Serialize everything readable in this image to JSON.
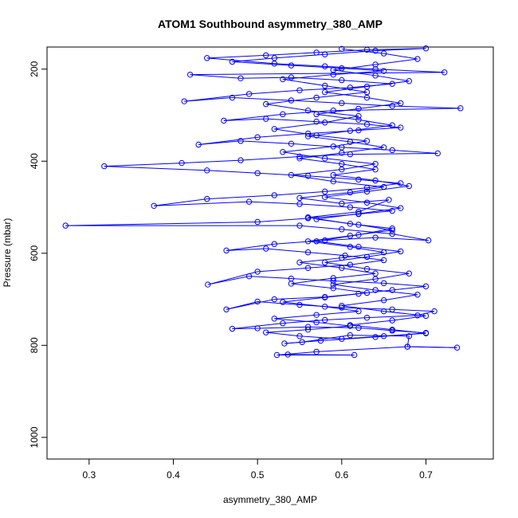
{
  "chart_data": {
    "type": "line",
    "title": "ATOM1 Southbound asymmetry_380_AMP",
    "xlabel": "asymmetry_380_AMP",
    "ylabel": "Pressure (mbar)",
    "xlim": [
      0.25,
      0.78
    ],
    "ylim": [
      1047,
      152
    ],
    "x_ticks": [
      "0.3",
      "0.4",
      "0.5",
      "0.6",
      "0.7"
    ],
    "x_tick_values": [
      0.3,
      0.4,
      0.5,
      0.6,
      0.7
    ],
    "y_ticks": [
      "200",
      "400",
      "600",
      "800",
      "1000"
    ],
    "y_tick_values": [
      200,
      400,
      600,
      800,
      1000
    ],
    "grid": false,
    "marker": "open-circle",
    "color": "#0000ff",
    "series": [
      {
        "points": [
          [
            0.536,
            820
          ],
          [
            0.615,
            821
          ],
          [
            0.523,
            821
          ],
          [
            0.57,
            814
          ],
          [
            0.678,
            803
          ],
          [
            0.737,
            805
          ],
          [
            0.678,
            803
          ],
          [
            0.68,
            780
          ],
          [
            0.61,
            778
          ],
          [
            0.553,
            793
          ],
          [
            0.532,
            796
          ],
          [
            0.575,
            790
          ],
          [
            0.64,
            782
          ],
          [
            0.7,
            773
          ],
          [
            0.66,
            768
          ],
          [
            0.62,
            762
          ],
          [
            0.56,
            760
          ],
          [
            0.5,
            763
          ],
          [
            0.47,
            764
          ],
          [
            0.53,
            752
          ],
          [
            0.58,
            745
          ],
          [
            0.63,
            740
          ],
          [
            0.69,
            735
          ],
          [
            0.71,
            726
          ],
          [
            0.66,
            722
          ],
          [
            0.6,
            718
          ],
          [
            0.55,
            712
          ],
          [
            0.5,
            705
          ],
          [
            0.463,
            722
          ],
          [
            0.52,
            700
          ],
          [
            0.58,
            695
          ],
          [
            0.62,
            688
          ],
          [
            0.66,
            680
          ],
          [
            0.7,
            672
          ],
          [
            0.65,
            665
          ],
          [
            0.59,
            660
          ],
          [
            0.54,
            655
          ],
          [
            0.49,
            650
          ],
          [
            0.441,
            668
          ],
          [
            0.5,
            640
          ],
          [
            0.56,
            632
          ],
          [
            0.61,
            625
          ],
          [
            0.65,
            615
          ],
          [
            0.604,
            605
          ],
          [
            0.56,
            598
          ],
          [
            0.51,
            590
          ],
          [
            0.463,
            594
          ],
          [
            0.52,
            580
          ],
          [
            0.58,
            572
          ],
          [
            0.64,
            566
          ],
          [
            0.703,
            572
          ],
          [
            0.66,
            558
          ],
          [
            0.6,
            548
          ],
          [
            0.55,
            540
          ],
          [
            0.272,
            540
          ],
          [
            0.5,
            532
          ],
          [
            0.56,
            524
          ],
          [
            0.62,
            515
          ],
          [
            0.66,
            508
          ],
          [
            0.61,
            500
          ],
          [
            0.55,
            493
          ],
          [
            0.49,
            488
          ],
          [
            0.377,
            497
          ],
          [
            0.44,
            482
          ],
          [
            0.52,
            474
          ],
          [
            0.58,
            466
          ],
          [
            0.63,
            458
          ],
          [
            0.67,
            448
          ],
          [
            0.62,
            440
          ],
          [
            0.56,
            432
          ],
          [
            0.5,
            426
          ],
          [
            0.44,
            420
          ],
          [
            0.318,
            411
          ],
          [
            0.41,
            404
          ],
          [
            0.48,
            398
          ],
          [
            0.55,
            390
          ],
          [
            0.61,
            385
          ],
          [
            0.714,
            383
          ],
          [
            0.66,
            376
          ],
          [
            0.6,
            370
          ],
          [
            0.54,
            362
          ],
          [
            0.48,
            356
          ],
          [
            0.43,
            364
          ],
          [
            0.5,
            348
          ],
          [
            0.56,
            340
          ],
          [
            0.62,
            333
          ],
          [
            0.67,
            327
          ],
          [
            0.63,
            320
          ],
          [
            0.57,
            314
          ],
          [
            0.51,
            308
          ],
          [
            0.46,
            312
          ],
          [
            0.53,
            298
          ],
          [
            0.59,
            290
          ],
          [
            0.741,
            285
          ],
          [
            0.66,
            280
          ],
          [
            0.6,
            274
          ],
          [
            0.54,
            268
          ],
          [
            0.47,
            262
          ],
          [
            0.413,
            270
          ],
          [
            0.49,
            254
          ],
          [
            0.55,
            246
          ],
          [
            0.61,
            240
          ],
          [
            0.66,
            232
          ],
          [
            0.6,
            224
          ],
          [
            0.54,
            218
          ],
          [
            0.48,
            220
          ],
          [
            0.42,
            212
          ],
          [
            0.722,
            207
          ],
          [
            0.64,
            200
          ],
          [
            0.58,
            194
          ],
          [
            0.52,
            188
          ],
          [
            0.44,
            176
          ],
          [
            0.51,
            170
          ],
          [
            0.57,
            164
          ],
          [
            0.63,
            158
          ],
          [
            0.7,
            155
          ],
          [
            0.64,
            160
          ],
          [
            0.58,
            168
          ],
          [
            0.52,
            176
          ],
          [
            0.47,
            184
          ],
          [
            0.54,
            192
          ],
          [
            0.6,
            198
          ],
          [
            0.65,
            204
          ],
          [
            0.59,
            212
          ],
          [
            0.53,
            222
          ],
          [
            0.58,
            236
          ],
          [
            0.63,
            250
          ],
          [
            0.57,
            262
          ],
          [
            0.51,
            276
          ],
          [
            0.56,
            290
          ],
          [
            0.62,
            302
          ],
          [
            0.58,
            316
          ],
          [
            0.52,
            330
          ],
          [
            0.57,
            344
          ],
          [
            0.63,
            356
          ],
          [
            0.59,
            368
          ],
          [
            0.53,
            380
          ],
          [
            0.58,
            394
          ],
          [
            0.64,
            406
          ],
          [
            0.6,
            418
          ],
          [
            0.54,
            430
          ],
          [
            0.59,
            444
          ],
          [
            0.65,
            456
          ],
          [
            0.61,
            468
          ],
          [
            0.55,
            480
          ],
          [
            0.6,
            492
          ],
          [
            0.656,
            484
          ],
          [
            0.62,
            510
          ],
          [
            0.56,
            522
          ],
          [
            0.61,
            536
          ],
          [
            0.66,
            546
          ],
          [
            0.62,
            560
          ],
          [
            0.57,
            574
          ],
          [
            0.62,
            586
          ],
          [
            0.67,
            596
          ],
          [
            0.63,
            608
          ],
          [
            0.58,
            620
          ],
          [
            0.63,
            634
          ],
          [
            0.68,
            644
          ],
          [
            0.64,
            656
          ],
          [
            0.59,
            668
          ],
          [
            0.64,
            680
          ],
          [
            0.69,
            690
          ],
          [
            0.65,
            702
          ],
          [
            0.6,
            714
          ],
          [
            0.65,
            726
          ],
          [
            0.7,
            736
          ],
          [
            0.66,
            746
          ],
          [
            0.61,
            756
          ],
          [
            0.66,
            766
          ],
          [
            0.7,
            774
          ],
          [
            0.65,
            780
          ],
          [
            0.6,
            786
          ],
          [
            0.55,
            780
          ],
          [
            0.51,
            772
          ],
          [
            0.56,
            766
          ],
          [
            0.61,
            758
          ],
          [
            0.57,
            750
          ],
          [
            0.52,
            742
          ],
          [
            0.57,
            734
          ],
          [
            0.62,
            726
          ],
          [
            0.58,
            716
          ],
          [
            0.53,
            706
          ],
          [
            0.58,
            696
          ],
          [
            0.63,
            686
          ],
          [
            0.59,
            676
          ],
          [
            0.54,
            666
          ],
          [
            0.59,
            654
          ],
          [
            0.64,
            644
          ],
          [
            0.6,
            632
          ],
          [
            0.55,
            620
          ],
          [
            0.6,
            610
          ],
          [
            0.65,
            598
          ],
          [
            0.61,
            586
          ],
          [
            0.56,
            574
          ],
          [
            0.61,
            562
          ],
          [
            0.66,
            550
          ],
          [
            0.62,
            538
          ],
          [
            0.57,
            526
          ],
          [
            0.62,
            514
          ],
          [
            0.67,
            502
          ],
          [
            0.63,
            490
          ],
          [
            0.58,
            478
          ],
          [
            0.63,
            466
          ],
          [
            0.68,
            454
          ],
          [
            0.64,
            442
          ],
          [
            0.59,
            430
          ],
          [
            0.64,
            418
          ],
          [
            0.6,
            406
          ],
          [
            0.55,
            394
          ],
          [
            0.6,
            382
          ],
          [
            0.65,
            370
          ],
          [
            0.61,
            358
          ],
          [
            0.56,
            346
          ],
          [
            0.61,
            334
          ],
          [
            0.66,
            322
          ],
          [
            0.62,
            310
          ],
          [
            0.57,
            298
          ],
          [
            0.62,
            286
          ],
          [
            0.67,
            274
          ],
          [
            0.63,
            262
          ],
          [
            0.58,
            250
          ],
          [
            0.63,
            238
          ],
          [
            0.68,
            226
          ],
          [
            0.64,
            214
          ],
          [
            0.59,
            202
          ],
          [
            0.64,
            190
          ],
          [
            0.69,
            178
          ],
          [
            0.65,
            166
          ],
          [
            0.6,
            156
          ]
        ]
      }
    ]
  }
}
